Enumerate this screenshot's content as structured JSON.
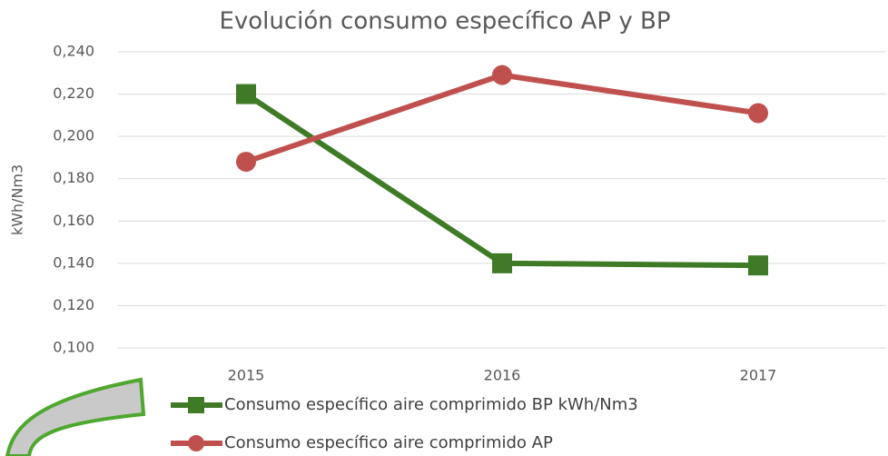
{
  "chart_data": {
    "type": "line",
    "title": "Evolución consumo específico AP y BP",
    "y_label": "kWh/Nm3",
    "categories": [
      "2015",
      "2016",
      "2017"
    ],
    "series": [
      {
        "name": "Consumo específico aire comprimido BP kWh/Nm3",
        "color": "#3f7a26",
        "marker": "square",
        "values": [
          0.22,
          0.14,
          0.139
        ]
      },
      {
        "name": "Consumo específico aire comprimido AP",
        "color": "#c0504d",
        "marker": "circle",
        "values": [
          0.188,
          0.229,
          0.211
        ]
      }
    ],
    "ylim": [
      0.1,
      0.24
    ],
    "yticks": [
      {
        "value": 0.1,
        "label": "0,100"
      },
      {
        "value": 0.12,
        "label": "0,120"
      },
      {
        "value": 0.14,
        "label": "0,140"
      },
      {
        "value": 0.16,
        "label": "0,160"
      },
      {
        "value": 0.18,
        "label": "0,180"
      },
      {
        "value": 0.2,
        "label": "0,200"
      },
      {
        "value": 0.22,
        "label": "0,220"
      },
      {
        "value": 0.24,
        "label": "0,240"
      }
    ],
    "grid": true,
    "legend": "bottom"
  }
}
